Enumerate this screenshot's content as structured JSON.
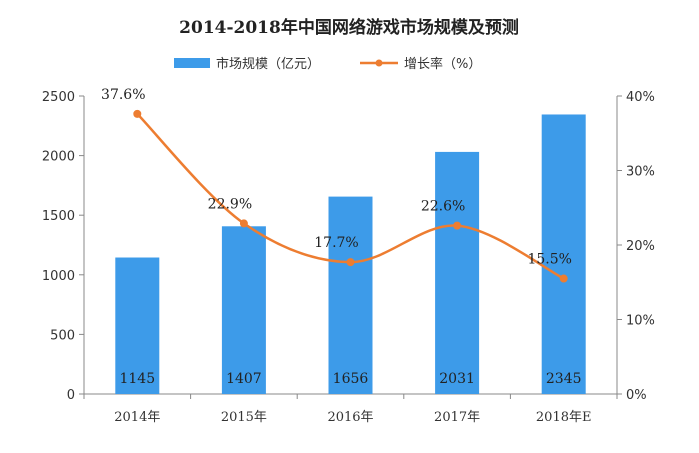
{
  "chart_data": {
    "type": "bar",
    "title": "2014-2018年中国网络游戏市场规模及预测",
    "categories": [
      "2014年",
      "2015年",
      "2016年",
      "2017年",
      "2018年E"
    ],
    "series": [
      {
        "name": "市场规模（亿元）",
        "type": "bar",
        "axis": "left",
        "values": [
          1145,
          1407,
          1656,
          2031,
          2345
        ],
        "labels": [
          "1145",
          "1407",
          "1656",
          "2031",
          "2345"
        ]
      },
      {
        "name": "增长率（%）",
        "type": "line",
        "axis": "right",
        "values": [
          37.6,
          22.9,
          17.7,
          22.6,
          15.5
        ],
        "labels": [
          "37.6%",
          "22.9%",
          "17.7%",
          "22.6%",
          "15.5%"
        ]
      }
    ],
    "y_left": {
      "ylim": [
        0,
        2500
      ],
      "ticks": [
        "0",
        "500",
        "1000",
        "1500",
        "2000",
        "2500"
      ]
    },
    "y_right": {
      "ylim": [
        0,
        40
      ],
      "ticks": [
        "0%",
        "10%",
        "20%",
        "30%",
        "40%"
      ]
    },
    "legend_position": "top",
    "grid": false,
    "colors": {
      "bar": "#3d9be9",
      "line": "#ed7d31"
    }
  }
}
